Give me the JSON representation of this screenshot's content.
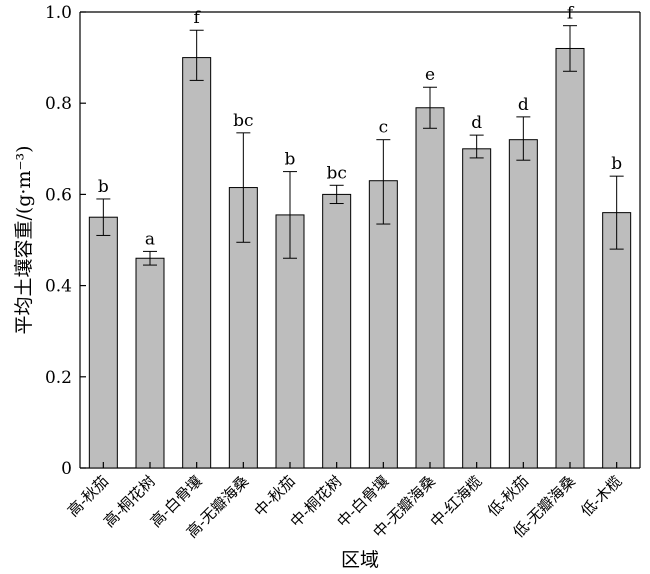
{
  "chart_data": {
    "type": "bar",
    "xlabel": "区域",
    "ylabel": "平均土壤容重/(g·m⁻³)",
    "ylim": [
      0,
      1.0
    ],
    "yticks": [
      "0",
      "0.2",
      "0.4",
      "0.6",
      "0.8",
      "1.0"
    ],
    "grid": false,
    "categories": [
      "高-秋茄",
      "高-桐花树",
      "高-白骨壤",
      "高-无瓣海桑",
      "中-秋茄",
      "中-桐花树",
      "中-白骨壤",
      "中-无瓣海桑",
      "中-红海榄",
      "低-秋茄",
      "低-无瓣海桑",
      "低-木榄"
    ],
    "values": [
      0.55,
      0.46,
      0.9,
      0.615,
      0.555,
      0.6,
      0.63,
      0.79,
      0.7,
      0.72,
      0.92,
      0.56
    ],
    "err_low": [
      0.51,
      0.445,
      0.85,
      0.495,
      0.46,
      0.58,
      0.535,
      0.745,
      0.68,
      0.675,
      0.87,
      0.48
    ],
    "err_high": [
      0.59,
      0.475,
      0.96,
      0.735,
      0.65,
      0.62,
      0.72,
      0.835,
      0.73,
      0.77,
      0.97,
      0.64
    ],
    "significance": [
      "b",
      "a",
      "f",
      "bc",
      "b",
      "bc",
      "c",
      "e",
      "d",
      "d",
      "f",
      "b"
    ],
    "bar_color": "#bdbdbd",
    "edge_color": "#000000"
  }
}
